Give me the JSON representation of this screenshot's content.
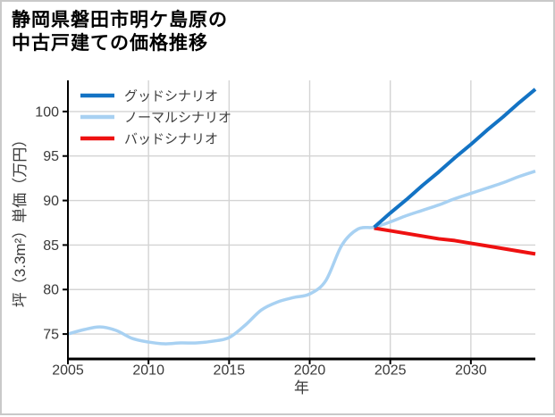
{
  "title": {
    "line1": "静岡県磐田市明ケ島原の",
    "line2": "中古戸建ての価格推移"
  },
  "chart_data": {
    "type": "line",
    "title": "静岡県磐田市明ケ島原の中古戸建ての価格推移",
    "xlabel": "年",
    "ylabel": "坪（3.3m²）単価（万円）",
    "xlim": [
      2005,
      2034
    ],
    "ylim": [
      72.2,
      103.5
    ],
    "xticks": [
      2005,
      2010,
      2015,
      2020,
      2025,
      2030
    ],
    "yticks": [
      75,
      80,
      85,
      90,
      95,
      100
    ],
    "grid": true,
    "grid_color": "#d4d4d4",
    "spine_color": "#000000",
    "legend": {
      "position": "upper-left-inside",
      "items": [
        {
          "key": "good-scenario",
          "label": "グッドシナリオ",
          "color": "#1373c4"
        },
        {
          "key": "normal-scenario",
          "label": "ノーマルシナリオ",
          "color": "#a8d1f2"
        },
        {
          "key": "bad-scenario",
          "label": "バッドシナリオ",
          "color": "#ee1111"
        }
      ]
    },
    "series": [
      {
        "key": "normal-scenario",
        "name": "ノーマルシナリオ",
        "note": "historical 2005-2024 then normal forecast to 2034",
        "color": "#a8d1f2",
        "width": 3.5,
        "smooth": true,
        "x": [
          2005,
          2006,
          2007,
          2008,
          2009,
          2010,
          2011,
          2012,
          2013,
          2014,
          2015,
          2016,
          2017,
          2018,
          2019,
          2020,
          2021,
          2022,
          2023,
          2024,
          2025,
          2026,
          2027,
          2028,
          2029,
          2030,
          2031,
          2032,
          2033,
          2034
        ],
        "y": [
          75.0,
          75.5,
          75.8,
          75.4,
          74.5,
          74.1,
          73.9,
          74.0,
          74.0,
          74.2,
          74.6,
          76.0,
          77.7,
          78.6,
          79.1,
          79.5,
          81.0,
          85.0,
          86.8,
          87.0,
          87.6,
          88.3,
          88.9,
          89.5,
          90.2,
          90.8,
          91.4,
          92.0,
          92.7,
          93.3
        ]
      },
      {
        "key": "bad-scenario",
        "name": "バッドシナリオ",
        "color": "#ee1111",
        "width": 4,
        "smooth": false,
        "x": [
          2024,
          2025,
          2026,
          2027,
          2028,
          2029,
          2030,
          2031,
          2032,
          2033,
          2034
        ],
        "y": [
          86.9,
          86.6,
          86.3,
          86.0,
          85.7,
          85.5,
          85.2,
          84.9,
          84.6,
          84.3,
          84.0
        ]
      },
      {
        "key": "good-scenario",
        "name": "グッドシナリオ",
        "color": "#1373c4",
        "width": 4,
        "smooth": false,
        "x": [
          2024,
          2025,
          2026,
          2027,
          2028,
          2029,
          2030,
          2031,
          2032,
          2033,
          2034
        ],
        "y": [
          87.0,
          88.6,
          90.1,
          91.7,
          93.2,
          94.8,
          96.3,
          97.9,
          99.4,
          101.0,
          102.5
        ]
      }
    ]
  }
}
